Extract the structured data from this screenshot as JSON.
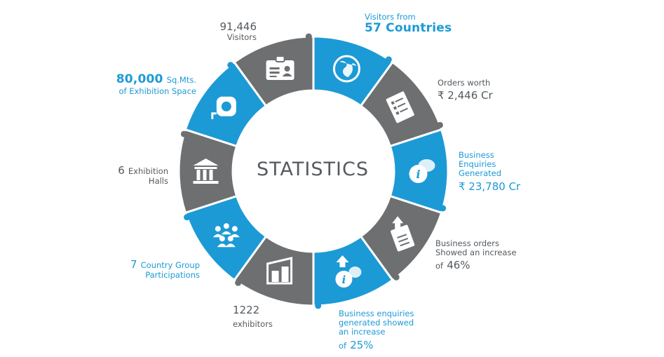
{
  "center_title": "STATISTICS",
  "colors": {
    "blue": "#1c9ad6",
    "gray": "#6e6f71",
    "text_gray": "#555a5e",
    "white": "#ffffff"
  },
  "segments": [
    {
      "id": "countries",
      "color": "blue",
      "icon": "globe-icon",
      "label": {
        "line1": "Visitors from",
        "line2": "57 Countries"
      }
    },
    {
      "id": "orders",
      "color": "gray",
      "icon": "document-list-icon",
      "label": {
        "line1": "Orders worth",
        "line2": "₹ 2,446 Cr"
      }
    },
    {
      "id": "enquiries",
      "color": "blue",
      "icon": "info-chat-icon",
      "label": {
        "line1": "Business",
        "line2": "Enquiries",
        "line3": "Generated",
        "line4": "₹ 23,780 Cr"
      }
    },
    {
      "id": "orders-increase",
      "color": "gray",
      "icon": "document-upload-icon",
      "label": {
        "line1": "Business orders",
        "line2": "Showed an increase",
        "prefix": "of",
        "value": "46%"
      }
    },
    {
      "id": "enquiries-increase",
      "color": "blue",
      "icon": "info-arrow-icon",
      "label": {
        "line1": "Business enquiries",
        "line2": "generated showed",
        "line3": "an increase",
        "prefix": "of",
        "value": "25%"
      }
    },
    {
      "id": "exhibitors",
      "color": "gray",
      "icon": "stall-icon",
      "label": {
        "line1": "1222",
        "line2": "exhibitors"
      }
    },
    {
      "id": "country-groups",
      "color": "blue",
      "icon": "people-group-icon",
      "label": {
        "value": "7",
        "line1": "Country Group",
        "line2": "Participations"
      }
    },
    {
      "id": "halls",
      "color": "gray",
      "icon": "building-icon",
      "label": {
        "value": "6",
        "line1": "Exhibition",
        "line2": "Halls"
      }
    },
    {
      "id": "space",
      "color": "blue",
      "icon": "measuring-tape-icon",
      "label": {
        "value": "80,000",
        "line1": "Sq.Mts.",
        "line2": "of Exhibition Space"
      }
    },
    {
      "id": "visitors",
      "color": "gray",
      "icon": "id-card-icon",
      "label": {
        "line1": "91,446",
        "line2": "Visitors"
      }
    }
  ]
}
